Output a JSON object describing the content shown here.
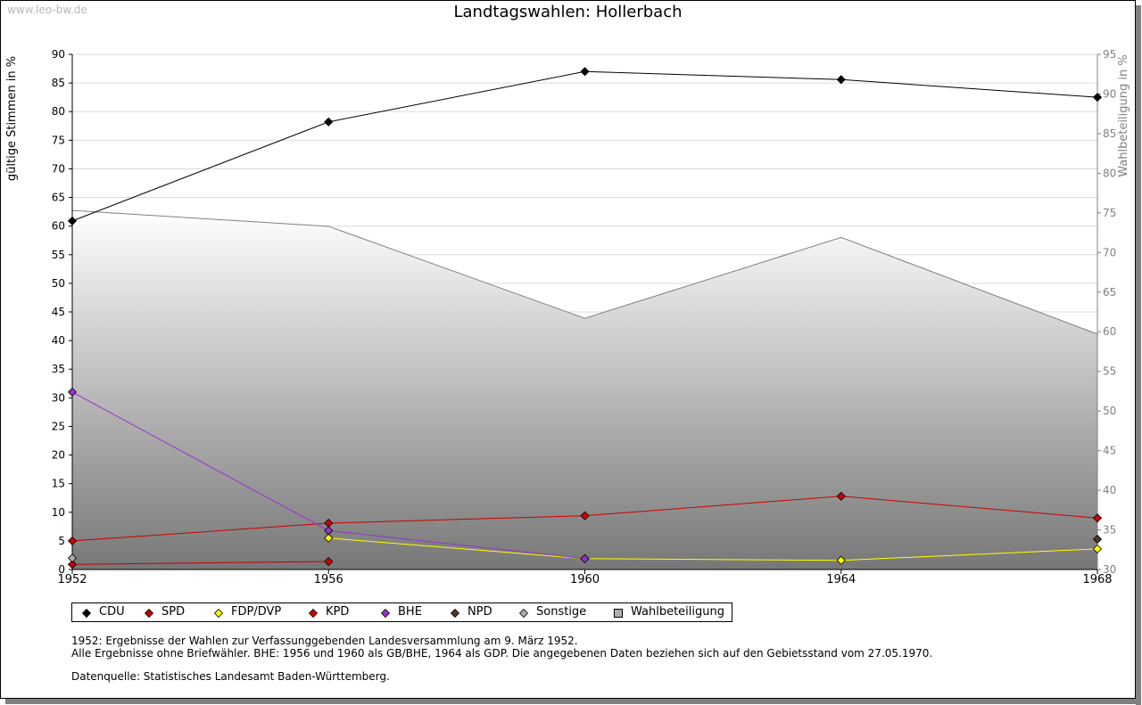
{
  "watermark": "www.leo-bw.de",
  "chart_data": {
    "type": "line",
    "title": "Landtagswahlen: Hollerbach",
    "ylabel_left": "gültige Stimmen in %",
    "ylabel_right": "Wahlbeteiligung in %",
    "categories": [
      "1952",
      "1956",
      "1960",
      "1964",
      "1968"
    ],
    "ylim_left": [
      0,
      90
    ],
    "ylim_right": [
      30,
      95
    ],
    "yticks_left": [
      "0",
      "5",
      "10",
      "15",
      "20",
      "25",
      "30",
      "35",
      "40",
      "45",
      "50",
      "55",
      "60",
      "65",
      "70",
      "75",
      "80",
      "85",
      "90"
    ],
    "yticks_right": [
      "30",
      "35",
      "40",
      "45",
      "50",
      "55",
      "60",
      "65",
      "70",
      "75",
      "80",
      "85",
      "90",
      "95"
    ],
    "grid": true,
    "legend_position": "bottom",
    "series": [
      {
        "name": "CDU",
        "color": "#000000",
        "values": [
          60.9,
          78.2,
          87.0,
          85.6,
          82.5
        ]
      },
      {
        "name": "SPD",
        "color": "#cc0000",
        "values": [
          5.0,
          8.1,
          9.4,
          12.8,
          9.0
        ]
      },
      {
        "name": "FDP/DVP",
        "color": "#ffff00",
        "values": [
          null,
          5.5,
          1.9,
          1.6,
          3.6
        ]
      },
      {
        "name": "KPD",
        "color": "#cc0000",
        "values": [
          0.9,
          1.4,
          null,
          null,
          null
        ]
      },
      {
        "name": "BHE",
        "color": "#9933cc",
        "values": [
          31.0,
          6.8,
          1.9,
          null,
          null
        ]
      },
      {
        "name": "NPD",
        "color": "#4d3b2d",
        "values": [
          null,
          null,
          null,
          null,
          5.3
        ]
      },
      {
        "name": "Sonstige",
        "color": "#aaaaaa",
        "values": [
          2.0,
          null,
          null,
          null,
          null
        ]
      }
    ],
    "turnout": {
      "name": "Wahlbeteiligung",
      "color": "#808080",
      "values": [
        75.3,
        73.3,
        61.7,
        71.9,
        59.7
      ]
    }
  },
  "legend": [
    {
      "label": "CDU",
      "color": "#000000",
      "shape": "diamond"
    },
    {
      "label": "SPD",
      "color": "#cc0000",
      "shape": "diamond"
    },
    {
      "label": "FDP/DVP",
      "color": "#ffff00",
      "shape": "diamond"
    },
    {
      "label": "KPD",
      "color": "#cc0000",
      "shape": "diamond"
    },
    {
      "label": "BHE",
      "color": "#9933cc",
      "shape": "diamond"
    },
    {
      "label": "NPD",
      "color": "#4d3b2d",
      "shape": "diamond"
    },
    {
      "label": "Sonstige",
      "color": "#aaaaaa",
      "shape": "diamond"
    },
    {
      "label": "Wahlbeteiligung",
      "color": "#b0b0b0",
      "shape": "square"
    }
  ],
  "notes": {
    "line1": "1952: Ergebnisse der Wahlen zur Verfassunggebenden Landesversammlung am 9. März 1952.",
    "line2": "Alle Ergebnisse ohne Briefwähler. BHE: 1956 und 1960 als GB/BHE, 1964 als GDP. Die angegebenen Daten beziehen sich auf den Gebietsstand vom 27.05.1970.",
    "source": "Datenquelle: Statistisches Landesamt Baden-Württemberg."
  }
}
